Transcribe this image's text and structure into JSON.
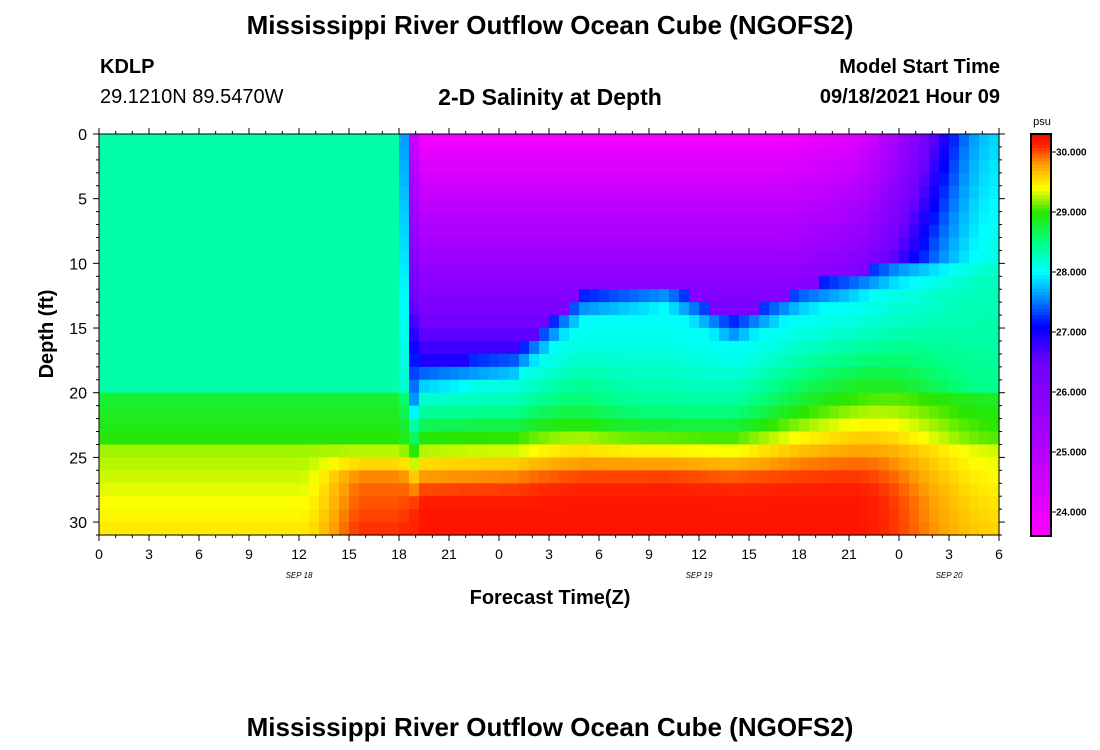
{
  "page": {
    "title_top": "Mississippi River Outflow Ocean Cube (NGOFS2)",
    "title_bottom": "Mississippi River Outflow Ocean Cube (NGOFS2)",
    "station": "KDLP",
    "coords": "29.1210N  89.5470W",
    "subtitle": "2-D Salinity at Depth",
    "model_start_label": "Model Start Time",
    "model_start_value": "09/18/2021 Hour 09"
  },
  "chart_data": {
    "type": "heatmap",
    "title": "2-D Salinity at Depth",
    "xlabel": "Forecast Time(Z)",
    "ylabel": "Depth (ft)",
    "x_range_hours": [
      0,
      54
    ],
    "y_range": [
      0,
      31
    ],
    "y_inverted": true,
    "x_tick_labels": [
      "0",
      "3",
      "6",
      "9",
      "12",
      "15",
      "18",
      "21",
      "0",
      "3",
      "6",
      "9",
      "12",
      "15",
      "18",
      "21",
      "0",
      "3",
      "6"
    ],
    "x_tick_hours": [
      0,
      3,
      6,
      9,
      12,
      15,
      18,
      21,
      24,
      27,
      30,
      33,
      36,
      39,
      42,
      45,
      48,
      51,
      54
    ],
    "day_labels": [
      {
        "text": "SEP 18",
        "hour": 12
      },
      {
        "text": "SEP 19",
        "hour": 36
      },
      {
        "text": "SEP 20",
        "hour": 51
      }
    ],
    "y_ticks": [
      0,
      5,
      10,
      15,
      20,
      25,
      30
    ],
    "colorbar": {
      "unit": "psu",
      "min": 23.6,
      "max": 30.3,
      "tick_values": [
        24.0,
        25.0,
        26.0,
        27.0,
        28.0,
        29.0,
        30.0
      ],
      "tick_labels": [
        "24.000",
        "25.000",
        "26.000",
        "27.000",
        "28.000",
        "29.000",
        "30.000"
      ]
    },
    "grid": false,
    "legend_placement": "right colorbar"
  }
}
